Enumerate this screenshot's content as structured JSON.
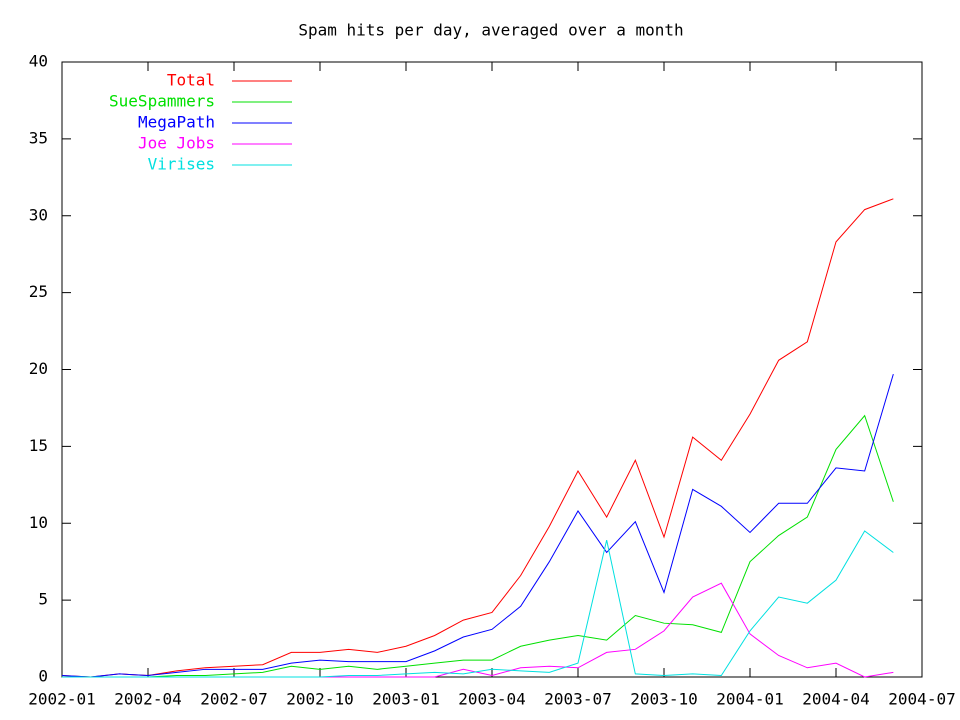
{
  "chart_data": {
    "type": "line",
    "title": "Spam hits per day, averaged over a month",
    "x": [
      "2002-01",
      "2002-02",
      "2002-03",
      "2002-04",
      "2002-05",
      "2002-06",
      "2002-07",
      "2002-08",
      "2002-09",
      "2002-10",
      "2002-11",
      "2002-12",
      "2003-01",
      "2003-02",
      "2003-03",
      "2003-04",
      "2003-05",
      "2003-06",
      "2003-07",
      "2003-08",
      "2003-09",
      "2003-10",
      "2003-11",
      "2003-12",
      "2004-01",
      "2004-02",
      "2004-03",
      "2004-04",
      "2004-05",
      "2004-06"
    ],
    "series": [
      {
        "name": "Total",
        "color": "#ff0000",
        "values": [
          0.1,
          0,
          0.2,
          0.1,
          0.4,
          0.6,
          0.7,
          0.8,
          1.6,
          1.6,
          1.8,
          1.6,
          2.0,
          2.7,
          3.7,
          4.2,
          6.6,
          9.8,
          13.4,
          10.4,
          14.1,
          9.1,
          15.6,
          14.1,
          17.1,
          20.6,
          21.8,
          28.3,
          30.4,
          31.1
        ]
      },
      {
        "name": "SueSpammers",
        "color": "#00e000",
        "values": [
          0,
          0,
          0,
          0,
          0.1,
          0.1,
          0.2,
          0.3,
          0.7,
          0.5,
          0.7,
          0.5,
          0.7,
          0.9,
          1.1,
          1.1,
          2.0,
          2.4,
          2.7,
          2.4,
          4.0,
          3.5,
          3.4,
          2.9,
          7.5,
          9.2,
          10.4,
          14.8,
          17.0,
          11.4
        ]
      },
      {
        "name": "MegaPath",
        "color": "#0000ff",
        "values": [
          0.1,
          0,
          0.2,
          0.1,
          0.3,
          0.5,
          0.5,
          0.5,
          0.9,
          1.1,
          1.0,
          1.0,
          1.0,
          1.7,
          2.6,
          3.1,
          4.6,
          7.5,
          10.8,
          8.1,
          10.1,
          5.5,
          12.2,
          11.1,
          9.4,
          11.3,
          11.3,
          13.6,
          13.4,
          19.7
        ]
      },
      {
        "name": "Joe Jobs",
        "color": "#ff00ff",
        "values": [
          0,
          0,
          0,
          0,
          0,
          0,
          0,
          0,
          0,
          0,
          0,
          0,
          0,
          0,
          0.5,
          0.1,
          0.6,
          0.7,
          0.6,
          1.6,
          1.8,
          3.0,
          5.2,
          6.1,
          2.8,
          1.4,
          0.6,
          0.9,
          0,
          0.3
        ]
      },
      {
        "name": "Virises",
        "color": "#00e0e0",
        "values": [
          0,
          0,
          0,
          0,
          0,
          0,
          0,
          0,
          0,
          0,
          0.1,
          0.1,
          0.2,
          0.3,
          0.2,
          0.5,
          0.4,
          0.3,
          0.9,
          8.9,
          0.2,
          0.1,
          0.2,
          0.1,
          3.0,
          5.2,
          4.8,
          6.3,
          9.5,
          8.1
        ]
      }
    ],
    "xlim": [
      "2002-01",
      "2004-07"
    ],
    "xticks": [
      "2002-01",
      "2002-04",
      "2002-07",
      "2002-10",
      "2003-01",
      "2003-04",
      "2003-07",
      "2003-10",
      "2004-01",
      "2004-04",
      "2004-07"
    ],
    "ylim": [
      0,
      40
    ],
    "yticks": [
      0,
      5,
      10,
      15,
      20,
      25,
      30,
      35,
      40
    ],
    "grid": false,
    "legend": "top-left"
  }
}
